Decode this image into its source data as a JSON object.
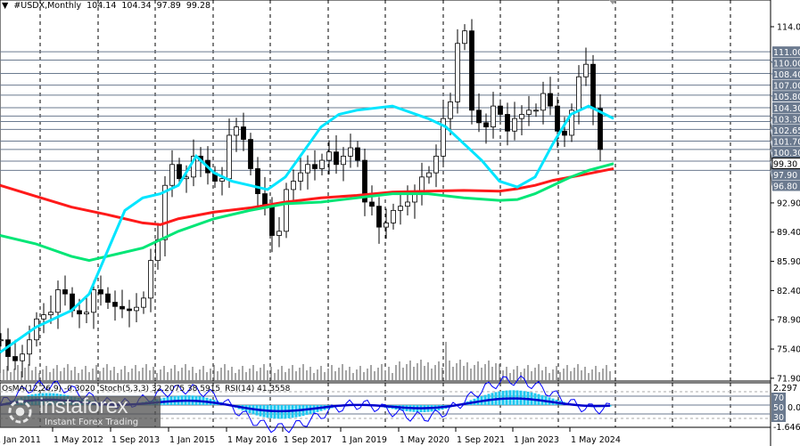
{
  "header": {
    "symbol": "#USDX,Monthly",
    "ohlc": [
      "104.14",
      "104.34",
      "97.89",
      "99.28"
    ]
  },
  "indicator_label": {
    "osma": "OsMA(12,26,9) -0.3020",
    "stoch": "Stoch(5,3,3) 32.2075 38.5915",
    "rsi": "RSI(14) 41.3558"
  },
  "logo": {
    "name": "instaforex",
    "tagline": "Instant Forex Trading"
  },
  "colors": {
    "ma_fast": "#00e5ff",
    "ma_mid": "#00e676",
    "ma_slow": "#ff1a1a",
    "level_line": "#6b7a8f",
    "level_box": "#6b7a8f",
    "osma": "#1ec8f0",
    "stoch_main": "#0000ff",
    "rsi": "#0000cc"
  },
  "chart_data": {
    "type": "candlestick",
    "title": "#USDX,Monthly",
    "y_ticks": [
      "114.00",
      "92.90",
      "89.40",
      "85.90",
      "82.40",
      "78.90",
      "75.40",
      "71.90"
    ],
    "ylim": [
      71.9,
      114.0
    ],
    "x_ticks": [
      "1 Jan 2011",
      "1 May 2012",
      "1 Sep 2013",
      "1 Jan 2015",
      "1 May 2016",
      "1 Sep 2017",
      "1 Jan 2019",
      "1 May 2020",
      "1 Sep 2021",
      "1 Jan 2023",
      "1 May 2024"
    ],
    "levels": [
      "111.00",
      "110.00",
      "108.40",
      "107.00",
      "105.80",
      "104.30",
      "103.30",
      "102.65",
      "101.70",
      "100.30",
      "99.30",
      "97.90",
      "96.80"
    ],
    "current_price": "99.30",
    "closes_bimonthly_from_2011": [
      76.5,
      74.5,
      74.0,
      74.8,
      76.5,
      79.0,
      79.5,
      79.8,
      82.5,
      82.0,
      80.0,
      79.6,
      79.8,
      82.5,
      82.0,
      81.0,
      80.5,
      80.2,
      80.0,
      80.4,
      81.5,
      86.0,
      88.5,
      95.0,
      97.5,
      95.8,
      96.0,
      98.5,
      98.0,
      96.5,
      95.5,
      95.8,
      101.0,
      102.0,
      100.5,
      97.0,
      94.0,
      92.5,
      89.0,
      89.5,
      94.5,
      95.5,
      96.5,
      97.5,
      97.0,
      98.0,
      99.0,
      97.5,
      98.5,
      99.5,
      98.0,
      93.0,
      92.5,
      90.0,
      90.5,
      92.0,
      92.5,
      93.0,
      94.0,
      96.0,
      96.5,
      98.5,
      103.0,
      105.0,
      112.0,
      113.5,
      104.0,
      102.5,
      102.0,
      104.5,
      103.5,
      101.5,
      103.0,
      103.5,
      104.0,
      104.0,
      106.0,
      104.5,
      101.5,
      101.0,
      104.0,
      108.0,
      109.5,
      104.2,
      99.3
    ],
    "ma_fast": [
      [
        0,
        75
      ],
      [
        10,
        78
      ],
      [
        20,
        80
      ],
      [
        25,
        82
      ],
      [
        30,
        87
      ],
      [
        35,
        92
      ],
      [
        40,
        93.5
      ],
      [
        45,
        94
      ],
      [
        50,
        95
      ],
      [
        55,
        98.5
      ],
      [
        60,
        96.5
      ],
      [
        65,
        95.5
      ],
      [
        70,
        95
      ],
      [
        75,
        94.5
      ],
      [
        80,
        96
      ],
      [
        85,
        99
      ],
      [
        90,
        102
      ],
      [
        95,
        103.5
      ],
      [
        100,
        104
      ],
      [
        110,
        104.5
      ],
      [
        120,
        103
      ],
      [
        125,
        102
      ],
      [
        130,
        100
      ],
      [
        135,
        98
      ],
      [
        140,
        95.5
      ],
      [
        145,
        94.8
      ],
      [
        150,
        96
      ],
      [
        155,
        100
      ],
      [
        160,
        103.5
      ],
      [
        165,
        104.5
      ],
      [
        172,
        103
      ]
    ],
    "ma_mid": [
      [
        0,
        89
      ],
      [
        10,
        88
      ],
      [
        20,
        86.5
      ],
      [
        25,
        86
      ],
      [
        30,
        86.5
      ],
      [
        40,
        87.5
      ],
      [
        50,
        89.5
      ],
      [
        60,
        91
      ],
      [
        70,
        92
      ],
      [
        80,
        92.8
      ],
      [
        90,
        93
      ],
      [
        100,
        93.5
      ],
      [
        110,
        94
      ],
      [
        120,
        94
      ],
      [
        130,
        93.5
      ],
      [
        140,
        93.2
      ],
      [
        145,
        93.3
      ],
      [
        150,
        94
      ],
      [
        155,
        95
      ],
      [
        160,
        96
      ],
      [
        165,
        96.8
      ],
      [
        172,
        97.6
      ]
    ],
    "ma_slow": [
      [
        0,
        95
      ],
      [
        10,
        93.7
      ],
      [
        20,
        92.4
      ],
      [
        30,
        91.5
      ],
      [
        40,
        90.5
      ],
      [
        45,
        90.3
      ],
      [
        50,
        91
      ],
      [
        60,
        91.8
      ],
      [
        70,
        92.3
      ],
      [
        80,
        93
      ],
      [
        90,
        93.5
      ],
      [
        100,
        93.8
      ],
      [
        110,
        94.2
      ],
      [
        120,
        94.3
      ],
      [
        130,
        94.4
      ],
      [
        140,
        94.3
      ],
      [
        145,
        94.6
      ],
      [
        150,
        95
      ],
      [
        155,
        95.6
      ],
      [
        160,
        96
      ],
      [
        165,
        96.4
      ],
      [
        172,
        97
      ]
    ],
    "indicator": {
      "axis_labels": [
        "2.297",
        "70",
        "50",
        "30",
        "0.00",
        "-1.6465"
      ],
      "osma_range": [
        -1.6465,
        2.297
      ]
    }
  }
}
